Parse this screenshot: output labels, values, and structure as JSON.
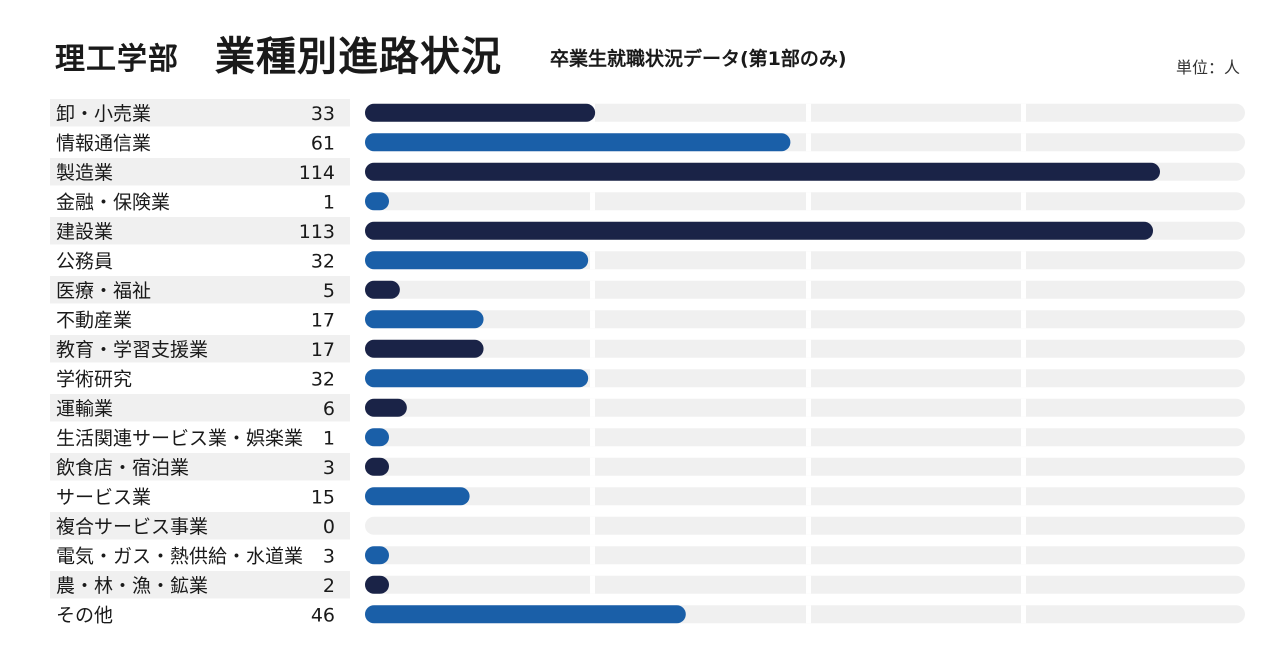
{
  "title": {
    "department": "理工学部",
    "main": "業種別進路状況",
    "subtitle": "卒業生就職状況データ(第1部のみ)",
    "unit": "単位：人"
  },
  "colors": {
    "dark": "#1a2347",
    "blue": "#1a5fa8",
    "track": "#f0f0f0",
    "label_stripe": "#f0f0f0"
  },
  "chart_data": {
    "type": "bar",
    "orientation": "horizontal",
    "categories": [
      "卸・小売業",
      "情報通信業",
      "製造業",
      "金融・保険業",
      "建設業",
      "公務員",
      "医療・福祉",
      "不動産業",
      "教育・学習支援業",
      "学術研究",
      "運輸業",
      "生活関連サービス業・娯楽業",
      "飲食店・宿泊業",
      "サービス業",
      "複合サービス事業",
      "電気・ガス・熱供給・水道業",
      "農・林・漁・鉱業",
      "その他"
    ],
    "values": [
      33,
      61,
      114,
      1,
      113,
      32,
      5,
      17,
      17,
      32,
      6,
      1,
      3,
      15,
      0,
      3,
      2,
      46
    ],
    "bar_colors": [
      "dark",
      "blue",
      "dark",
      "blue",
      "dark",
      "blue",
      "dark",
      "blue",
      "dark",
      "blue",
      "dark",
      "blue",
      "dark",
      "blue",
      "blue",
      "blue",
      "dark",
      "blue"
    ],
    "xlim": [
      0,
      120
    ],
    "grid": true
  }
}
